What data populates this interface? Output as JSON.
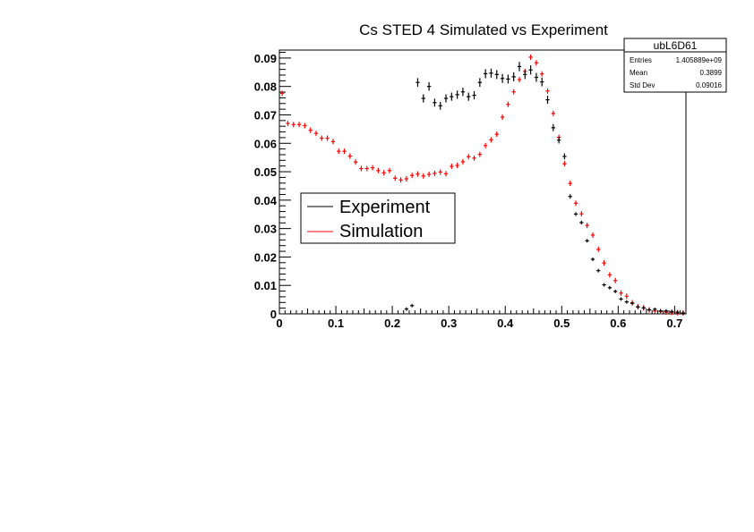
{
  "chart_data": {
    "type": "scatter",
    "title": "Cs STED 4 Simulated vs Experiment",
    "xlabel": "",
    "ylabel": "",
    "xlim": [
      0,
      0.72
    ],
    "ylim": [
      0,
      0.0928
    ],
    "bin_width": 0.01,
    "x_ticks": [
      "0",
      "0.1",
      "0.2",
      "0.3",
      "0.4",
      "0.5",
      "0.6",
      "0.7"
    ],
    "y_ticks": [
      "0",
      "0.01",
      "0.02",
      "0.03",
      "0.04",
      "0.05",
      "0.06",
      "0.07",
      "0.08",
      "0.09"
    ],
    "legend_position": "center-left",
    "series": [
      {
        "name": "Experiment",
        "color": "#000000",
        "bin_start": 22,
        "values": [
          0.0017,
          0.0029,
          0.0814,
          0.0758,
          0.08,
          0.0743,
          0.0732,
          0.0758,
          0.0764,
          0.0771,
          0.0781,
          0.0764,
          0.0769,
          0.0814,
          0.0845,
          0.0847,
          0.0842,
          0.0828,
          0.0826,
          0.0834,
          0.087,
          0.0842,
          0.0858,
          0.0832,
          0.0816,
          0.0753,
          0.0655,
          0.0611,
          0.0554,
          0.0413,
          0.0351,
          0.0321,
          0.0257,
          0.0192,
          0.0152,
          0.0102,
          0.0092,
          0.0079,
          0.0052,
          0.0042,
          0.0037,
          0.0024,
          0.0021,
          0.0014,
          0.0016,
          0.001,
          0.001,
          0.0008,
          0.0006,
          0.0003
        ]
      },
      {
        "name": "Simulation",
        "color": "#ff0000",
        "bin_start": 0,
        "values": [
          0.0776,
          0.067,
          0.0666,
          0.0666,
          0.0662,
          0.0646,
          0.0635,
          0.0618,
          0.0618,
          0.0606,
          0.0572,
          0.0572,
          0.0555,
          0.0534,
          0.0511,
          0.0511,
          0.0514,
          0.0504,
          0.0496,
          0.0504,
          0.0477,
          0.0471,
          0.0475,
          0.0487,
          0.0492,
          0.0485,
          0.0491,
          0.0494,
          0.0499,
          0.0493,
          0.0519,
          0.0522,
          0.0535,
          0.0553,
          0.0548,
          0.0561,
          0.0592,
          0.0612,
          0.0632,
          0.0692,
          0.0737,
          0.0781,
          0.0824,
          0.0853,
          0.0903,
          0.0883,
          0.0844,
          0.0784,
          0.0705,
          0.0621,
          0.0528,
          0.0459,
          0.0389,
          0.0352,
          0.0311,
          0.0277,
          0.0227,
          0.0179,
          0.0137,
          0.0117,
          0.0073,
          0.0062,
          0.0039,
          0.0025,
          0.0021,
          0.0014,
          0.001,
          0.0008,
          0.0006,
          0.0005,
          0.0004,
          0.0003
        ]
      }
    ]
  },
  "stats_box": {
    "name": "ubL6D61",
    "entries_label": "Entries",
    "entries_value": "1.405889e+09",
    "mean_label": "Mean",
    "mean_value": "0.3899",
    "stddev_label": "Std Dev",
    "stddev_value": "0.09016"
  }
}
